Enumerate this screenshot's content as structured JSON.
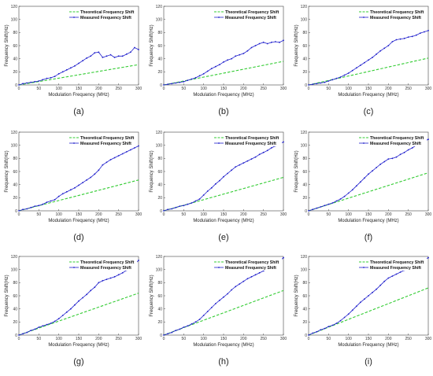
{
  "figure": {
    "panels": [
      {
        "caption": "(a)"
      },
      {
        "caption": "(b)"
      },
      {
        "caption": "(c)"
      },
      {
        "caption": "(d)"
      },
      {
        "caption": "(e)"
      },
      {
        "caption": "(f)"
      },
      {
        "caption": "(g)"
      },
      {
        "caption": "(h)"
      },
      {
        "caption": "(i)"
      }
    ]
  },
  "colors": {
    "theoretical": "#33cc33",
    "measured": "#1f1fcc",
    "axes": "#444444"
  },
  "chart_data": [
    {
      "type": "line",
      "caption": "(a)",
      "xlabel": "Modulation Frequency (MHz)",
      "ylabel": "Frequency Shift(Hz)",
      "xlim": [
        0,
        300
      ],
      "ylim": [
        0,
        120
      ],
      "xticks": [
        0,
        50,
        100,
        150,
        200,
        250,
        300
      ],
      "yticks": [
        0,
        20,
        40,
        60,
        80,
        100,
        120
      ],
      "legend_position": "top-left",
      "grid": false,
      "series": [
        {
          "name": "Theoretical Frequency Shift",
          "style": "dashed",
          "x": [
            0,
            300
          ],
          "y": [
            0,
            31
          ]
        },
        {
          "name": "Measured Frequency Shift",
          "style": "solid-dot",
          "x": [
            0,
            10,
            20,
            30,
            40,
            50,
            60,
            70,
            80,
            90,
            100,
            110,
            120,
            130,
            140,
            150,
            160,
            170,
            180,
            190,
            200,
            210,
            220,
            230,
            240,
            250,
            260,
            270,
            280,
            290,
            300
          ],
          "y": [
            0,
            2,
            3,
            4,
            5,
            6,
            8,
            10,
            11,
            13,
            17,
            20,
            23,
            26,
            29,
            33,
            37,
            41,
            44,
            49,
            50,
            42,
            44,
            46,
            42,
            44,
            44,
            47,
            50,
            57,
            54
          ]
        }
      ]
    },
    {
      "type": "line",
      "caption": "(b)",
      "xlabel": "Modulation Frequency (MHz)",
      "ylabel": "Frequency Shift(Hz)",
      "xlim": [
        0,
        300
      ],
      "ylim": [
        0,
        120
      ],
      "xticks": [
        0,
        50,
        100,
        150,
        200,
        250,
        300
      ],
      "yticks": [
        0,
        20,
        40,
        60,
        80,
        100,
        120
      ],
      "legend_position": "top-left",
      "grid": false,
      "series": [
        {
          "name": "Theoretical Frequency Shift",
          "style": "dashed",
          "x": [
            0,
            300
          ],
          "y": [
            0,
            36
          ]
        },
        {
          "name": "Measured Frequency Shift",
          "style": "solid-dot",
          "x": [
            0,
            10,
            20,
            30,
            40,
            50,
            60,
            70,
            80,
            90,
            100,
            110,
            120,
            130,
            140,
            150,
            160,
            170,
            180,
            190,
            200,
            210,
            220,
            230,
            240,
            250,
            260,
            270,
            280,
            290,
            300
          ],
          "y": [
            0,
            1,
            2,
            3,
            4,
            5,
            7,
            9,
            11,
            14,
            17,
            21,
            25,
            28,
            31,
            35,
            38,
            40,
            44,
            46,
            48,
            52,
            57,
            60,
            63,
            65,
            63,
            65,
            66,
            65,
            68
          ]
        }
      ]
    },
    {
      "type": "line",
      "caption": "(c)",
      "xlabel": "Modulation Frequency (MHz)",
      "ylabel": "Frequency Shift(Hz)",
      "xlim": [
        0,
        300
      ],
      "ylim": [
        0,
        120
      ],
      "xticks": [
        0,
        50,
        100,
        150,
        200,
        250,
        300
      ],
      "yticks": [
        0,
        20,
        40,
        60,
        80,
        100,
        120
      ],
      "legend_position": "top-left",
      "grid": false,
      "series": [
        {
          "name": "Theoretical Frequency Shift",
          "style": "dashed",
          "x": [
            0,
            300
          ],
          "y": [
            0,
            41
          ]
        },
        {
          "name": "Measured Frequency Shift",
          "style": "solid-dot",
          "x": [
            0,
            10,
            20,
            30,
            40,
            50,
            60,
            70,
            80,
            90,
            100,
            110,
            120,
            130,
            140,
            150,
            160,
            170,
            180,
            190,
            200,
            210,
            220,
            230,
            240,
            250,
            260,
            270,
            280,
            290,
            300
          ],
          "y": [
            0,
            1,
            2,
            3,
            4,
            6,
            8,
            10,
            12,
            15,
            18,
            22,
            26,
            30,
            34,
            38,
            42,
            47,
            52,
            56,
            60,
            66,
            69,
            70,
            71,
            73,
            74,
            76,
            79,
            81,
            83
          ]
        }
      ]
    },
    {
      "type": "line",
      "caption": "(d)",
      "xlabel": "Modulation Frequency (MHz)",
      "ylabel": "Frequency Shift(Hz)",
      "xlim": [
        0,
        300
      ],
      "ylim": [
        0,
        120
      ],
      "xticks": [
        0,
        50,
        100,
        150,
        200,
        250,
        300
      ],
      "yticks": [
        0,
        20,
        40,
        60,
        80,
        100,
        120
      ],
      "legend_position": "top-left",
      "grid": false,
      "series": [
        {
          "name": "Theoretical Frequency Shift",
          "style": "dashed",
          "x": [
            0,
            300
          ],
          "y": [
            0,
            47
          ]
        },
        {
          "name": "Measured Frequency Shift",
          "style": "solid-dot",
          "x": [
            0,
            10,
            20,
            30,
            40,
            50,
            60,
            70,
            80,
            90,
            100,
            110,
            120,
            130,
            140,
            150,
            160,
            170,
            180,
            190,
            200,
            210,
            220,
            230,
            240,
            250,
            260,
            270,
            280,
            290,
            300
          ],
          "y": [
            0,
            2,
            3,
            5,
            7,
            8,
            10,
            13,
            15,
            17,
            22,
            26,
            29,
            32,
            35,
            39,
            43,
            47,
            51,
            56,
            62,
            70,
            74,
            78,
            81,
            84,
            87,
            90,
            93,
            96,
            99
          ]
        }
      ]
    },
    {
      "type": "line",
      "caption": "(e)",
      "xlabel": "Modulation Frequency (MHz)",
      "ylabel": "Frequency Shift(Hz)",
      "xlim": [
        0,
        300
      ],
      "ylim": [
        0,
        120
      ],
      "xticks": [
        0,
        50,
        100,
        150,
        200,
        250,
        300
      ],
      "yticks": [
        0,
        20,
        40,
        60,
        80,
        100,
        120
      ],
      "legend_position": "top-left",
      "grid": false,
      "series": [
        {
          "name": "Theoretical Frequency Shift",
          "style": "dashed",
          "x": [
            0,
            300
          ],
          "y": [
            0,
            51
          ]
        },
        {
          "name": "Measured Frequency Shift",
          "style": "solid-dot",
          "x": [
            0,
            10,
            20,
            30,
            40,
            50,
            60,
            70,
            80,
            90,
            100,
            110,
            120,
            130,
            140,
            150,
            160,
            170,
            180,
            190,
            200,
            210,
            220,
            230,
            240,
            250,
            260,
            270,
            280,
            290,
            300
          ],
          "y": [
            0,
            2,
            3,
            5,
            7,
            8,
            10,
            12,
            15,
            18,
            24,
            30,
            35,
            41,
            46,
            52,
            57,
            62,
            67,
            70,
            73,
            76,
            79,
            82,
            86,
            89,
            92,
            96,
            99,
            102,
            105
          ]
        }
      ]
    },
    {
      "type": "line",
      "caption": "(f)",
      "xlabel": "Modulation Frequency (MHz)",
      "ylabel": "Frequency Shift(Hz)",
      "xlim": [
        0,
        300
      ],
      "ylim": [
        0,
        120
      ],
      "xticks": [
        0,
        50,
        100,
        150,
        200,
        250,
        300
      ],
      "yticks": [
        0,
        20,
        40,
        60,
        80,
        100,
        120
      ],
      "legend_position": "top-left",
      "grid": false,
      "series": [
        {
          "name": "Theoretical Frequency Shift",
          "style": "dashed",
          "x": [
            0,
            300
          ],
          "y": [
            0,
            58
          ]
        },
        {
          "name": "Measured Frequency Shift",
          "style": "solid-dot",
          "x": [
            0,
            10,
            20,
            30,
            40,
            50,
            60,
            70,
            80,
            90,
            100,
            110,
            120,
            130,
            140,
            150,
            160,
            170,
            180,
            190,
            200,
            210,
            220,
            230,
            240,
            250,
            260,
            270,
            280,
            290,
            300
          ],
          "y": [
            0,
            2,
            4,
            6,
            8,
            10,
            12,
            15,
            18,
            22,
            27,
            32,
            38,
            44,
            50,
            56,
            61,
            66,
            71,
            75,
            79,
            80,
            82,
            86,
            89,
            93,
            96,
            100,
            103,
            106,
            109
          ]
        }
      ]
    },
    {
      "type": "line",
      "caption": "(g)",
      "xlabel": "Modulation Frequency (MHz)",
      "ylabel": "Frequency Shift(Hz)",
      "xlim": [
        0,
        300
      ],
      "ylim": [
        0,
        120
      ],
      "xticks": [
        0,
        50,
        100,
        150,
        200,
        250,
        300
      ],
      "yticks": [
        0,
        20,
        40,
        60,
        80,
        100,
        120
      ],
      "legend_position": "top-left",
      "grid": false,
      "series": [
        {
          "name": "Theoretical Frequency Shift",
          "style": "dashed",
          "x": [
            0,
            300
          ],
          "y": [
            0,
            64
          ]
        },
        {
          "name": "Measured Frequency Shift",
          "style": "solid-dot",
          "x": [
            0,
            10,
            20,
            30,
            40,
            50,
            60,
            70,
            80,
            90,
            100,
            110,
            120,
            130,
            140,
            150,
            160,
            170,
            180,
            190,
            200,
            210,
            220,
            230,
            240,
            250,
            260,
            270,
            280,
            290,
            300
          ],
          "y": [
            0,
            2,
            4,
            7,
            9,
            12,
            14,
            16,
            18,
            21,
            25,
            30,
            35,
            40,
            46,
            52,
            57,
            62,
            68,
            73,
            80,
            83,
            85,
            87,
            89,
            92,
            95,
            99,
            103,
            108,
            114
          ]
        }
      ]
    },
    {
      "type": "line",
      "caption": "(h)",
      "xlabel": "Modulation Frequency (MHz)",
      "ylabel": "Frequency Shift(Hz)",
      "xlim": [
        0,
        300
      ],
      "ylim": [
        0,
        120
      ],
      "xticks": [
        0,
        50,
        100,
        150,
        200,
        250,
        300
      ],
      "yticks": [
        0,
        20,
        40,
        60,
        80,
        100,
        120
      ],
      "legend_position": "top-left",
      "grid": false,
      "series": [
        {
          "name": "Theoretical Frequency Shift",
          "style": "dashed",
          "x": [
            0,
            300
          ],
          "y": [
            0,
            68
          ]
        },
        {
          "name": "Measured Frequency Shift",
          "style": "solid-dot",
          "x": [
            0,
            10,
            20,
            30,
            40,
            50,
            60,
            70,
            80,
            90,
            100,
            110,
            120,
            130,
            140,
            150,
            160,
            170,
            180,
            190,
            200,
            210,
            220,
            230,
            240,
            250,
            260,
            270,
            280,
            290,
            300
          ],
          "y": [
            0,
            2,
            4,
            7,
            9,
            12,
            14,
            17,
            20,
            24,
            30,
            36,
            42,
            48,
            53,
            58,
            63,
            69,
            74,
            78,
            82,
            86,
            89,
            92,
            95,
            98,
            101,
            105,
            109,
            113,
            118
          ]
        }
      ]
    },
    {
      "type": "line",
      "caption": "(i)",
      "xlabel": "Modulation Frequency (MHz)",
      "ylabel": "Frequency Shift(Hz)",
      "xlim": [
        0,
        300
      ],
      "ylim": [
        0,
        120
      ],
      "xticks": [
        0,
        50,
        100,
        150,
        200,
        250,
        300
      ],
      "yticks": [
        0,
        20,
        40,
        60,
        80,
        100,
        120
      ],
      "legend_position": "top-left",
      "grid": false,
      "series": [
        {
          "name": "Theoretical Frequency Shift",
          "style": "dashed",
          "x": [
            0,
            300
          ],
          "y": [
            0,
            72
          ]
        },
        {
          "name": "Measured Frequency Shift",
          "style": "solid-dot",
          "x": [
            0,
            10,
            20,
            30,
            40,
            50,
            60,
            70,
            80,
            90,
            100,
            110,
            120,
            130,
            140,
            150,
            160,
            170,
            180,
            190,
            200,
            210,
            220,
            230,
            240,
            250,
            260,
            270,
            280,
            290,
            300
          ],
          "y": [
            0,
            3,
            5,
            8,
            10,
            13,
            15,
            18,
            22,
            27,
            32,
            38,
            44,
            50,
            55,
            60,
            65,
            70,
            76,
            82,
            87,
            90,
            93,
            96,
            99,
            102,
            105,
            108,
            111,
            115,
            118
          ]
        }
      ]
    }
  ]
}
